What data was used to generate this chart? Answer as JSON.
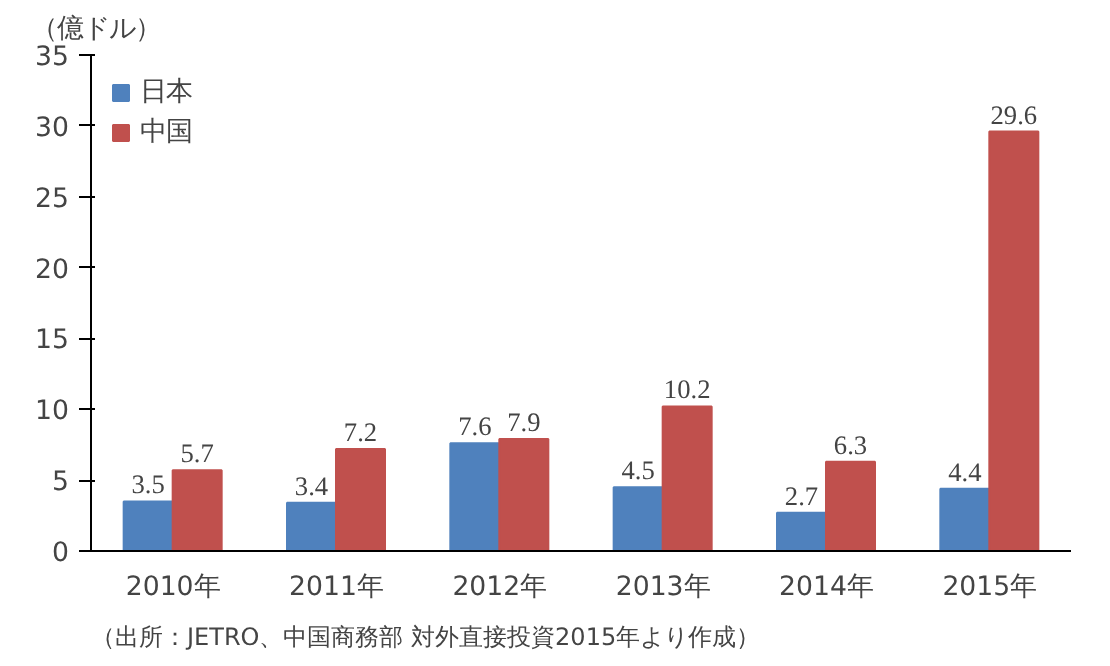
{
  "chart_data": {
    "type": "bar",
    "ylabel": "（億ドル）",
    "categories": [
      "2010年",
      "2011年",
      "2012年",
      "2013年",
      "2014年",
      "2015年"
    ],
    "series": [
      {
        "name": "日本",
        "color": "#4f81bd",
        "values": [
          3.5,
          3.4,
          7.6,
          4.5,
          2.7,
          4.4
        ]
      },
      {
        "name": "中国",
        "color": "#c0504d",
        "values": [
          5.7,
          7.2,
          7.9,
          10.2,
          6.3,
          29.6
        ]
      }
    ],
    "ylim": [
      0,
      35
    ],
    "yticks": [
      0,
      5,
      10,
      15,
      20,
      25,
      30,
      35
    ],
    "grid": false,
    "legend": "top left",
    "data_labels": true,
    "annotations": [
      "（出所：JETRO、中国商務部 対外直接投資2015年より作成）"
    ]
  }
}
